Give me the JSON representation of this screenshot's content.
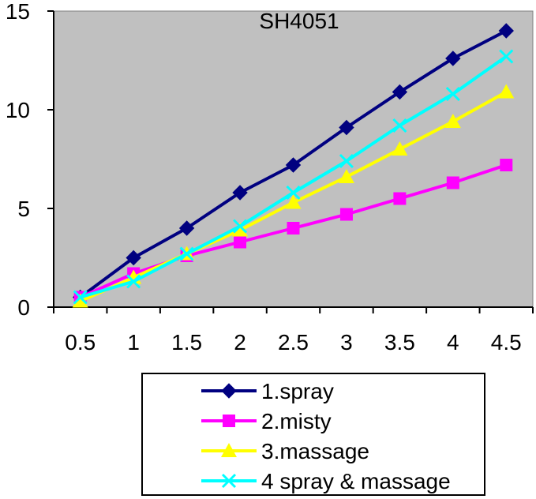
{
  "chart_data": {
    "type": "line",
    "title": "SH4051",
    "xlabel": "",
    "ylabel": "",
    "categories": [
      "0.5",
      "1",
      "1.5",
      "2",
      "2.5",
      "3",
      "3.5",
      "4",
      "4.5"
    ],
    "ylim": [
      0,
      15
    ],
    "yticks": [
      "0",
      "5",
      "10",
      "15"
    ],
    "grid": false,
    "plot_background": "#c0c0c0",
    "legend_position": "bottom",
    "series": [
      {
        "name": "1.spray",
        "color": "#000080",
        "marker": "diamond",
        "values": [
          0.5,
          2.5,
          4.0,
          5.8,
          7.2,
          9.1,
          10.9,
          12.6,
          14.0
        ]
      },
      {
        "name": "2.misty",
        "color": "#ff00ff",
        "marker": "square",
        "values": [
          0.5,
          1.7,
          2.6,
          3.3,
          4.0,
          4.7,
          5.5,
          6.3,
          7.2
        ]
      },
      {
        "name": "3.massage",
        "color": "#ffff00",
        "marker": "triangle",
        "values": [
          0.3,
          1.5,
          2.7,
          3.9,
          5.3,
          6.6,
          8.0,
          9.4,
          10.9
        ]
      },
      {
        "name": "4 spray & massage",
        "color": "#00ffff",
        "marker": "x",
        "values": [
          0.5,
          1.3,
          2.7,
          4.1,
          5.8,
          7.4,
          9.2,
          10.8,
          12.7
        ]
      }
    ]
  }
}
